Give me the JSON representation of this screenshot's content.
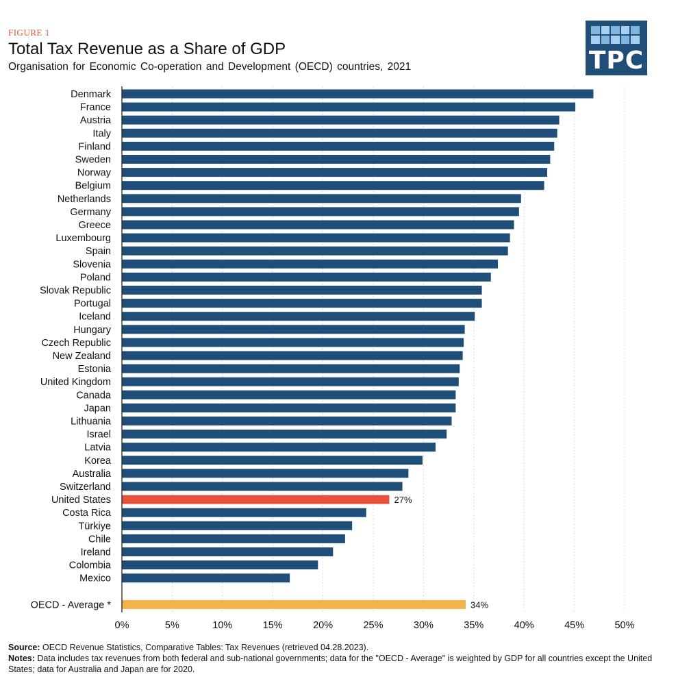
{
  "header": {
    "figure_label": "FIGURE 1",
    "title": "Total Tax Revenue as a Share of GDP",
    "subtitle": "Organisation for Economic Co-operation and Development (OECD) countries, 2021",
    "logo_text": "TPC"
  },
  "footer": {
    "source_label": "Source:",
    "source_text": "OECD Revenue Statistics, Comparative Tables: Tax Revenues (retrieved 04.28.2023).",
    "notes_label": "Notes:",
    "notes_text": "Data includes tax revenues from both federal and sub-national governments; data for the \"OECD - Average\" is weighted by GDP for all countries except the United States; data for Australia and Japan are for 2020."
  },
  "colors": {
    "bar": "#1f4e79",
    "highlight": "#e8513a",
    "average": "#f4b24c",
    "grid": "#cfcfcf",
    "logo_bg": "#1f4e79"
  },
  "chart_data": {
    "type": "bar",
    "orientation": "horizontal",
    "title": "Total Tax Revenue as a Share of GDP",
    "xlabel": "",
    "ylabel": "",
    "xlim": [
      0,
      50
    ],
    "xticks": [
      "0%",
      "5%",
      "10%",
      "15%",
      "20%",
      "25%",
      "30%",
      "35%",
      "40%",
      "45%",
      "50%"
    ],
    "grid": "vertical dotted",
    "categories": [
      "Denmark",
      "France",
      "Austria",
      "Italy",
      "Finland",
      "Sweden",
      "Norway",
      "Belgium",
      "Netherlands",
      "Germany",
      "Greece",
      "Luxembourg",
      "Spain",
      "Slovenia",
      "Poland",
      "Slovak Republic",
      "Portugal",
      "Iceland",
      "Hungary",
      "Czech Republic",
      "New Zealand",
      "Estonia",
      "United Kingdom",
      "Canada",
      "Japan",
      "Lithuania",
      "Israel",
      "Latvia",
      "Korea",
      "Australia",
      "Switzerland",
      "United States",
      "Costa Rica",
      "Türkiye",
      "Chile",
      "Ireland",
      "Colombia",
      "Mexico"
    ],
    "values": [
      46.9,
      45.1,
      43.5,
      43.3,
      43.0,
      42.6,
      42.3,
      42.0,
      39.7,
      39.5,
      39.0,
      38.6,
      38.4,
      37.4,
      36.7,
      35.8,
      35.8,
      35.1,
      34.1,
      34.0,
      33.9,
      33.6,
      33.5,
      33.2,
      33.2,
      32.8,
      32.3,
      31.2,
      29.9,
      28.5,
      27.9,
      26.6,
      24.3,
      22.9,
      22.2,
      21.0,
      19.5,
      16.7
    ],
    "highlight": {
      "category": "United States",
      "label": "27%"
    },
    "average": {
      "category": "OECD - Average *",
      "value": 34.2,
      "label": "34%"
    }
  }
}
